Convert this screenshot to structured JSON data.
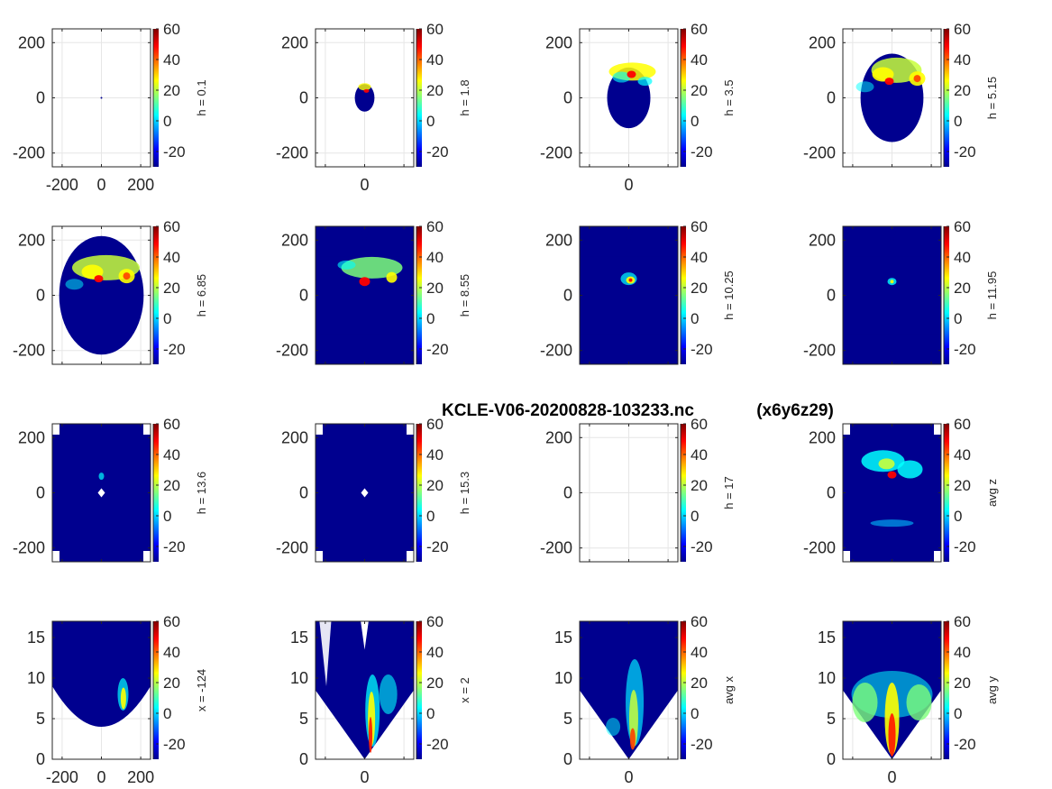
{
  "figure": {
    "title_file": "KCLE-V06-20200828-103233.nc",
    "title_grid": "(x6y6z29)",
    "colormap": "jet",
    "background_color": "#00008f"
  },
  "chart_data": [
    {
      "type": "heatmap",
      "row": 0,
      "col": 0,
      "colorbar_label": "h = 0.1",
      "clim": [
        -30,
        60
      ],
      "colorbar_ticks": [
        "60",
        "40",
        "20",
        "0",
        "-20"
      ],
      "xlim": [
        -250,
        250
      ],
      "ylim": [
        -250,
        250
      ],
      "xticks": [
        "-200",
        "0",
        "200"
      ],
      "yticks": [
        "200",
        "0",
        "-200"
      ],
      "echo_shape": "none",
      "echo_radius": 0,
      "feature": "empty"
    },
    {
      "type": "heatmap",
      "row": 0,
      "col": 1,
      "colorbar_label": "h = 1.8",
      "clim": [
        -30,
        60
      ],
      "colorbar_ticks": [
        "60",
        "40",
        "20",
        "0",
        "-20"
      ],
      "xlim": [
        -250,
        250
      ],
      "ylim": [
        -250,
        250
      ],
      "xticks": [
        "0"
      ],
      "yticks": [
        "200",
        "0",
        "-200"
      ],
      "echo_shape": "disk",
      "echo_radius": 50,
      "feature": "small"
    },
    {
      "type": "heatmap",
      "row": 0,
      "col": 2,
      "colorbar_label": "h = 3.5",
      "clim": [
        -30,
        60
      ],
      "colorbar_ticks": [
        "60",
        "40",
        "20",
        "0",
        "-20"
      ],
      "xlim": [
        -250,
        250
      ],
      "ylim": [
        -250,
        250
      ],
      "xticks": [
        "0"
      ],
      "yticks": [
        "200",
        "0",
        "-200"
      ],
      "echo_shape": "disk",
      "echo_radius": 110,
      "feature": "storm-top"
    },
    {
      "type": "heatmap",
      "row": 0,
      "col": 3,
      "colorbar_label": "h = 5.15",
      "clim": [
        -30,
        60
      ],
      "colorbar_ticks": [
        "60",
        "40",
        "20",
        "0",
        "-20"
      ],
      "xlim": [
        -250,
        250
      ],
      "ylim": [
        -250,
        250
      ],
      "xticks": [],
      "yticks": [
        "200",
        "0",
        "-200"
      ],
      "echo_shape": "disk",
      "echo_radius": 160,
      "feature": "storm-wide"
    },
    {
      "type": "heatmap",
      "row": 1,
      "col": 0,
      "colorbar_label": "h = 6.85",
      "clim": [
        -30,
        60
      ],
      "colorbar_ticks": [
        "60",
        "40",
        "20",
        "0",
        "-20"
      ],
      "xlim": [
        -250,
        250
      ],
      "ylim": [
        -250,
        250
      ],
      "xticks": [],
      "yticks": [
        "200",
        "0",
        "-200"
      ],
      "echo_shape": "disk",
      "echo_radius": 215,
      "feature": "storm-wide"
    },
    {
      "type": "heatmap",
      "row": 1,
      "col": 1,
      "colorbar_label": "h = 8.55",
      "clim": [
        -30,
        60
      ],
      "colorbar_ticks": [
        "60",
        "40",
        "20",
        "0",
        "-20"
      ],
      "xlim": [
        -250,
        250
      ],
      "ylim": [
        -250,
        250
      ],
      "xticks": [],
      "yticks": [
        "200",
        "0",
        "-200"
      ],
      "echo_shape": "lobed",
      "echo_radius": 245,
      "feature": "storm-mid"
    },
    {
      "type": "heatmap",
      "row": 1,
      "col": 2,
      "colorbar_label": "h = 10.25",
      "clim": [
        -30,
        60
      ],
      "colorbar_ticks": [
        "60",
        "40",
        "20",
        "0",
        "-20"
      ],
      "xlim": [
        -250,
        250
      ],
      "ylim": [
        -250,
        250
      ],
      "xticks": [],
      "yticks": [
        "200",
        "0",
        "-200"
      ],
      "echo_shape": "lobed",
      "echo_radius": 250,
      "feature": "storm-small"
    },
    {
      "type": "heatmap",
      "row": 1,
      "col": 3,
      "colorbar_label": "h = 11.95",
      "clim": [
        -30,
        60
      ],
      "colorbar_ticks": [
        "60",
        "40",
        "20",
        "0",
        "-20"
      ],
      "xlim": [
        -250,
        250
      ],
      "ylim": [
        -250,
        250
      ],
      "xticks": [],
      "yticks": [
        "200",
        "0",
        "-200"
      ],
      "echo_shape": "lobed",
      "echo_radius": 250,
      "feature": "storm-tiny"
    },
    {
      "type": "heatmap",
      "row": 2,
      "col": 0,
      "colorbar_label": "h = 13.6",
      "clim": [
        -30,
        60
      ],
      "colorbar_ticks": [
        "60",
        "40",
        "20",
        "0",
        "-20"
      ],
      "xlim": [
        -250,
        250
      ],
      "ylim": [
        -250,
        250
      ],
      "xticks": [],
      "yticks": [
        "200",
        "0",
        "-200"
      ],
      "echo_shape": "full",
      "echo_radius": 250,
      "feature": "center-hole"
    },
    {
      "type": "heatmap",
      "row": 2,
      "col": 1,
      "colorbar_label": "h = 15.3",
      "clim": [
        -30,
        60
      ],
      "colorbar_ticks": [
        "60",
        "40",
        "20",
        "0",
        "-20"
      ],
      "xlim": [
        -250,
        250
      ],
      "ylim": [
        -250,
        250
      ],
      "xticks": [],
      "yticks": [
        "200",
        "0",
        "-200"
      ],
      "echo_shape": "full",
      "echo_radius": 250,
      "feature": "center-hole"
    },
    {
      "type": "heatmap",
      "row": 2,
      "col": 2,
      "colorbar_label": "h = 17",
      "clim": [
        -30,
        60
      ],
      "colorbar_ticks": [
        "60",
        "40",
        "20",
        "0",
        "-20"
      ],
      "xlim": [
        -250,
        250
      ],
      "ylim": [
        -250,
        250
      ],
      "xticks": [],
      "yticks": [
        "200",
        "0",
        "-200"
      ],
      "echo_shape": "none",
      "echo_radius": 0,
      "feature": "empty"
    },
    {
      "type": "heatmap",
      "row": 2,
      "col": 3,
      "colorbar_label": "avg z",
      "clim": [
        -30,
        60
      ],
      "colorbar_ticks": [
        "60",
        "40",
        "20",
        "0",
        "-20"
      ],
      "xlim": [
        -250,
        250
      ],
      "ylim": [
        -250,
        250
      ],
      "xticks": [],
      "yticks": [
        "200",
        "0",
        "-200"
      ],
      "echo_shape": "full",
      "echo_radius": 250,
      "feature": "storm-avg"
    },
    {
      "type": "heatmap",
      "row": 3,
      "col": 0,
      "colorbar_label": "x = -124",
      "clim": [
        -30,
        60
      ],
      "colorbar_ticks": [
        "60",
        "40",
        "20",
        "0",
        "-20"
      ],
      "xlim": [
        -250,
        250
      ],
      "ylim": [
        0,
        17
      ],
      "xticks": [
        "-200",
        "0",
        "200"
      ],
      "yticks": [
        "15",
        "10",
        "5",
        "0"
      ],
      "echo_shape": "vbowl",
      "echo_radius": 0,
      "feature": "vslice-a"
    },
    {
      "type": "heatmap",
      "row": 3,
      "col": 1,
      "colorbar_label": "x = 2",
      "clim": [
        -30,
        60
      ],
      "colorbar_ticks": [
        "60",
        "40",
        "20",
        "0",
        "-20"
      ],
      "xlim": [
        -250,
        250
      ],
      "ylim": [
        0,
        17
      ],
      "xticks": [
        "0"
      ],
      "yticks": [
        "15",
        "10",
        "5",
        "0"
      ],
      "echo_shape": "vcone",
      "echo_radius": 0,
      "feature": "vslice-b"
    },
    {
      "type": "heatmap",
      "row": 3,
      "col": 2,
      "colorbar_label": "avg x",
      "clim": [
        -30,
        60
      ],
      "colorbar_ticks": [
        "60",
        "40",
        "20",
        "0",
        "-20"
      ],
      "xlim": [
        -250,
        250
      ],
      "ylim": [
        0,
        17
      ],
      "xticks": [
        "0"
      ],
      "yticks": [
        "15",
        "10",
        "5",
        "0"
      ],
      "echo_shape": "vcone",
      "echo_radius": 0,
      "feature": "vslice-c"
    },
    {
      "type": "heatmap",
      "row": 3,
      "col": 3,
      "colorbar_label": "avg y",
      "clim": [
        -30,
        60
      ],
      "colorbar_ticks": [
        "60",
        "40",
        "20",
        "0",
        "-20"
      ],
      "xlim": [
        -250,
        250
      ],
      "ylim": [
        0,
        17
      ],
      "xticks": [
        "0"
      ],
      "yticks": [
        "15",
        "10",
        "5",
        "0"
      ],
      "echo_shape": "vcone",
      "echo_radius": 0,
      "feature": "vslice-d"
    }
  ]
}
